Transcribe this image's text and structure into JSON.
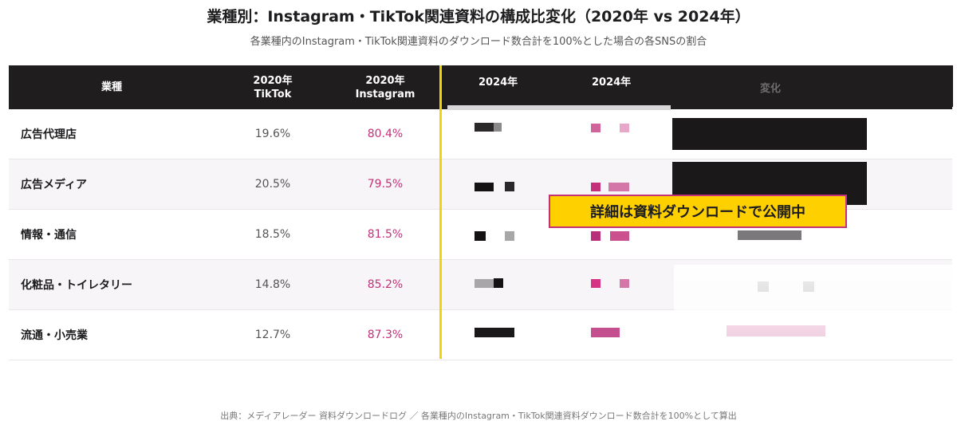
{
  "header": {
    "title": "業種別：Instagram・TikTok関連資料の構成比変化（2020年 vs 2024年）",
    "subtitle": "各業種内のInstagram・TikTok関連資料のダウンロード数合計を100%とした場合の各SNSの割合"
  },
  "table": {
    "columns": {
      "industry": "業種",
      "tiktok_2020": [
        "2020年",
        "TikTok"
      ],
      "instagram_2020": [
        "2020年",
        "Instagram"
      ],
      "col_2024_a": "2024年",
      "col_2024_b": "2024年",
      "change": "変化"
    },
    "rows": [
      {
        "industry": "広告代理店",
        "tiktok_2020": "19.6%",
        "instagram_2020": "80.4%"
      },
      {
        "industry": "広告メディア",
        "tiktok_2020": "20.5%",
        "instagram_2020": "79.5%"
      },
      {
        "industry": "情報・通信",
        "tiktok_2020": "18.5%",
        "instagram_2020": "81.5%"
      },
      {
        "industry": "化粧品・トイレタリー",
        "tiktok_2020": "14.8%",
        "instagram_2020": "85.2%"
      },
      {
        "industry": "流通・小売業",
        "tiktok_2020": "12.7%",
        "instagram_2020": "87.3%"
      }
    ]
  },
  "chart_data": {
    "type": "table",
    "title": "業種別：Instagram・TikTok関連資料の構成比変化（2020年 vs 2024年）",
    "subtitle": "各業種内のInstagram・TikTok関連資料のダウンロード数合計を100%とした場合の各SNSの割合",
    "columns": [
      "業種",
      "2020年 TikTok",
      "2020年 Instagram"
    ],
    "categories": [
      "広告代理店",
      "広告メディア",
      "情報・通信",
      "化粧品・トイレタリー",
      "流通・小売業"
    ],
    "series": [
      {
        "name": "2020年 TikTok",
        "values": [
          19.6,
          20.5,
          18.5,
          14.8,
          12.7
        ]
      },
      {
        "name": "2020年 Instagram",
        "values": [
          80.4,
          79.5,
          81.5,
          85.2,
          87.3
        ]
      }
    ]
  },
  "badge": {
    "label": "詳細は資料ダウンロードで公開中"
  },
  "source": "出典：メディアレーダー 資料ダウンロードログ ／ 各業種内のInstagram・TikTok関連資料ダウンロード数合計を100%として算出",
  "colors": {
    "header_bg": "#1f1d1e",
    "instagram": "#c2317a",
    "accent_yellow": "#ffd000"
  }
}
